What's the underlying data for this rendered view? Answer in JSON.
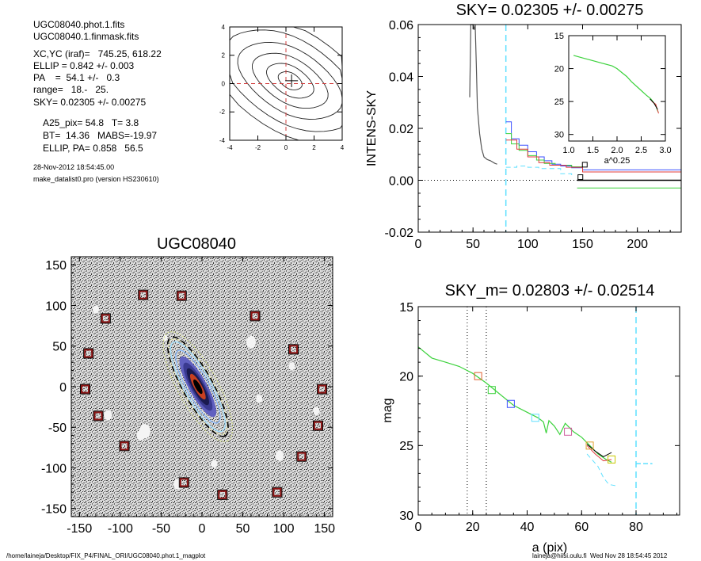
{
  "info": {
    "file1": "UGC08040.phot.1.fits",
    "file2": "UGC08040.1.finmask.fits",
    "xcyc": "XC,YC (iraf)=   745.25, 618.22",
    "ellip": "ELLIP = 0.842 +/- 0.003",
    "pa": "PA    =  54.1 +/-   0.3",
    "range": "range=   18.-   25.",
    "sky": "SKY= 0.02305 +/- 0.00275",
    "a25": "A25_pix= 54.8   T= 3.8",
    "bt": "BT=  14.36   MABS=-19.97",
    "ellippa": "ELLIP, PA= 0.858   56.5",
    "date": "28-Nov-2012 18:54:45.00",
    "program": "make_datalist0.pro (version HS230610)"
  },
  "footer": {
    "path": "/home/laineja/Desktop/FIX_P4/FINAL_ORI/UGC08040.phot.1_magplot",
    "user": "laineja@hiisi.oulu.fi  Wed Nov 28 18:54:45 2012"
  },
  "chart_data": [
    {
      "type": "contour",
      "xlim": [
        -4,
        4
      ],
      "ylim": [
        -4,
        4
      ],
      "xticks": [
        -4,
        -2,
        0,
        2,
        4
      ],
      "yticks": [
        -4,
        -2,
        0,
        2,
        4
      ],
      "crosshair": [
        0,
        0
      ]
    },
    {
      "type": "line",
      "title": "SKY= 0.02305 +/- 0.00275",
      "ylabel": "INTENS-SKY",
      "xlim": [
        0,
        240
      ],
      "ylim": [
        -0.02,
        0.06
      ],
      "xticks": [
        0,
        50,
        100,
        150,
        200
      ],
      "yticks": [
        "-0.02",
        "0.00",
        "0.02",
        "0.04",
        "0.06"
      ],
      "sky_cut_x": 80,
      "profile": [
        [
          47,
          0.032
        ],
        [
          48,
          0.06
        ],
        [
          50,
          0.062
        ],
        [
          51,
          0.058
        ],
        [
          52,
          0.06
        ],
        [
          53,
          0.045
        ],
        [
          54,
          0.028
        ],
        [
          56,
          0.018
        ],
        [
          58,
          0.012
        ],
        [
          60,
          0.009
        ],
        [
          63,
          0.008
        ],
        [
          66,
          0.0075
        ],
        [
          70,
          0.0065
        ],
        [
          72,
          0.0062
        ]
      ],
      "series": [
        {
          "name": "blue",
          "color": "#3c50ff",
          "values": [
            [
              80,
              0.0225
            ],
            [
              85,
              0.016
            ],
            [
              92,
              0.0135
            ],
            [
              100,
              0.011
            ],
            [
              108,
              0.009
            ],
            [
              115,
              0.0075
            ],
            [
              122,
              0.0062
            ],
            [
              130,
              0.0055
            ],
            [
              140,
              0.0048
            ],
            [
              150,
              0.004
            ],
            [
              240,
              0.004
            ]
          ]
        },
        {
          "name": "green",
          "color": "#3cd23c",
          "values": [
            [
              80,
              0.018
            ],
            [
              85,
              0.014
            ],
            [
              92,
              0.0115
            ],
            [
              100,
              0.0095
            ],
            [
              108,
              0.0078
            ],
            [
              115,
              0.0065
            ],
            [
              125,
              0.0058
            ],
            [
              140,
              0.0052
            ],
            [
              150,
              0.0045
            ]
          ]
        },
        {
          "name": "red",
          "color": "#e03c3c",
          "values": [
            [
              80,
              0.0155
            ],
            [
              90,
              0.012
            ],
            [
              100,
              0.009
            ],
            [
              110,
              0.0068
            ],
            [
              120,
              0.0058
            ],
            [
              135,
              0.005
            ],
            [
              150,
              0.0032
            ],
            [
              240,
              0.0032
            ]
          ]
        },
        {
          "name": "cyan",
          "color": "#5fe0ff",
          "values": [
            [
              80,
              0.005
            ],
            [
              90,
              0.0055
            ],
            [
              100,
              0.005
            ],
            [
              110,
              0.0045
            ],
            [
              130,
              0.0025
            ],
            [
              140,
              0.002
            ]
          ]
        },
        {
          "name": "black",
          "color": "#000000",
          "values": [
            [
              145,
              0
            ],
            [
              240,
              0
            ]
          ]
        },
        {
          "name": "green2",
          "color": "#3cd23c",
          "values": [
            [
              145,
              -0.003
            ],
            [
              240,
              -0.003
            ]
          ]
        }
      ],
      "markers": [
        [
          152,
          0.006
        ],
        [
          148,
          0.0012
        ]
      ],
      "inset": {
        "xlabel": "a^0.25",
        "xlim": [
          1.0,
          3.0
        ],
        "ylim": [
          15,
          31
        ],
        "xticks": [
          "1.0",
          "1.5",
          "2.0",
          "2.5",
          "3.0"
        ],
        "yticks": [
          "15",
          "20",
          "25",
          "30"
        ],
        "curve": [
          [
            1.1,
            18.0
          ],
          [
            1.3,
            18.4
          ],
          [
            1.5,
            18.8
          ],
          [
            1.7,
            19.2
          ],
          [
            1.9,
            19.6
          ],
          [
            2.0,
            20.0
          ],
          [
            2.1,
            20.6
          ],
          [
            2.2,
            21.2
          ],
          [
            2.3,
            22.0
          ],
          [
            2.45,
            23.0
          ],
          [
            2.6,
            24.0
          ],
          [
            2.7,
            24.6
          ],
          [
            2.8,
            25.6
          ],
          [
            2.85,
            26.6
          ]
        ]
      }
    },
    {
      "type": "image",
      "title": "UGC08040",
      "xlim": [
        -160,
        160
      ],
      "ylim": [
        -160,
        160
      ],
      "xticks": [
        -150,
        -100,
        -50,
        0,
        50,
        100,
        150
      ],
      "yticks": [
        -150,
        -100,
        -50,
        0,
        50,
        100,
        150
      ],
      "pa_deg": 54.1,
      "boxes": [
        [
          -72,
          113
        ],
        [
          -25,
          112
        ],
        [
          65,
          87
        ],
        [
          -118,
          84
        ],
        [
          112,
          46
        ],
        [
          -139,
          41
        ],
        [
          -143,
          -3
        ],
        [
          147,
          -3
        ],
        [
          -127,
          -36
        ],
        [
          142,
          -48
        ],
        [
          -95,
          -73
        ],
        [
          122,
          -86
        ],
        [
          -22,
          -118
        ],
        [
          25,
          -133
        ],
        [
          92,
          -130
        ]
      ]
    },
    {
      "type": "line",
      "title": "SKY_m=  0.02803 +/- 0.02514",
      "xlabel": "a (pix)",
      "ylabel": "mag",
      "xlim": [
        0,
        96
      ],
      "ylim": [
        15,
        30
      ],
      "xticks": [
        0,
        20,
        40,
        60,
        80
      ],
      "yticks": [
        15,
        20,
        25,
        30
      ],
      "vlines_dotted": [
        18,
        25
      ],
      "vline_dashed": 80,
      "sky_segment": [
        [
          80,
          26.3
        ],
        [
          86,
          26.3
        ]
      ],
      "series": [
        {
          "name": "profile",
          "color": "#3cd23c",
          "values": [
            [
              0,
              17.9
            ],
            [
              5,
              18.7
            ],
            [
              10,
              19.0
            ],
            [
              15,
              19.3
            ],
            [
              20,
              19.8
            ],
            [
              25,
              20.5
            ],
            [
              30,
              21.3
            ],
            [
              35,
              22.1
            ],
            [
              40,
              22.6
            ],
            [
              44,
              23.0
            ],
            [
              46,
              23.3
            ],
            [
              47,
              24.1
            ],
            [
              48,
              23.2
            ],
            [
              50,
              23.6
            ],
            [
              52,
              24.2
            ],
            [
              54,
              23.4
            ],
            [
              57,
              24.0
            ],
            [
              60,
              24.4
            ],
            [
              63,
              25.0
            ],
            [
              66,
              25.6
            ],
            [
              69,
              26.0
            ],
            [
              71,
              26.2
            ]
          ]
        },
        {
          "name": "red",
          "color": "#e03c3c",
          "values": [
            [
              62,
              25.0
            ],
            [
              65,
              25.6
            ],
            [
              68,
              26.1
            ],
            [
              71,
              26.0
            ]
          ]
        },
        {
          "name": "black",
          "color": "#000000",
          "values": [
            [
              62,
              24.9
            ],
            [
              65,
              25.4
            ],
            [
              68,
              25.8
            ],
            [
              71,
              25.5
            ]
          ]
        },
        {
          "name": "cyan",
          "color": "#5fe0ff",
          "values": [
            [
              62,
              25.6
            ],
            [
              66,
              26.5
            ],
            [
              68,
              27.3
            ],
            [
              70,
              27.8
            ],
            [
              73,
              27.9
            ]
          ]
        }
      ],
      "markers": [
        {
          "x": 22,
          "y": 20.0,
          "color": "#e06030"
        },
        {
          "x": 27,
          "y": 21.0,
          "color": "#3cd23c"
        },
        {
          "x": 34,
          "y": 22.0,
          "color": "#3c50ff"
        },
        {
          "x": 43,
          "y": 23.0,
          "color": "#5fe0ff"
        },
        {
          "x": 55,
          "y": 24.0,
          "color": "#d060a0"
        },
        {
          "x": 63,
          "y": 25.0,
          "color": "#e0a030"
        },
        {
          "x": 71,
          "y": 26.0,
          "color": "#c8c800"
        }
      ]
    }
  ]
}
